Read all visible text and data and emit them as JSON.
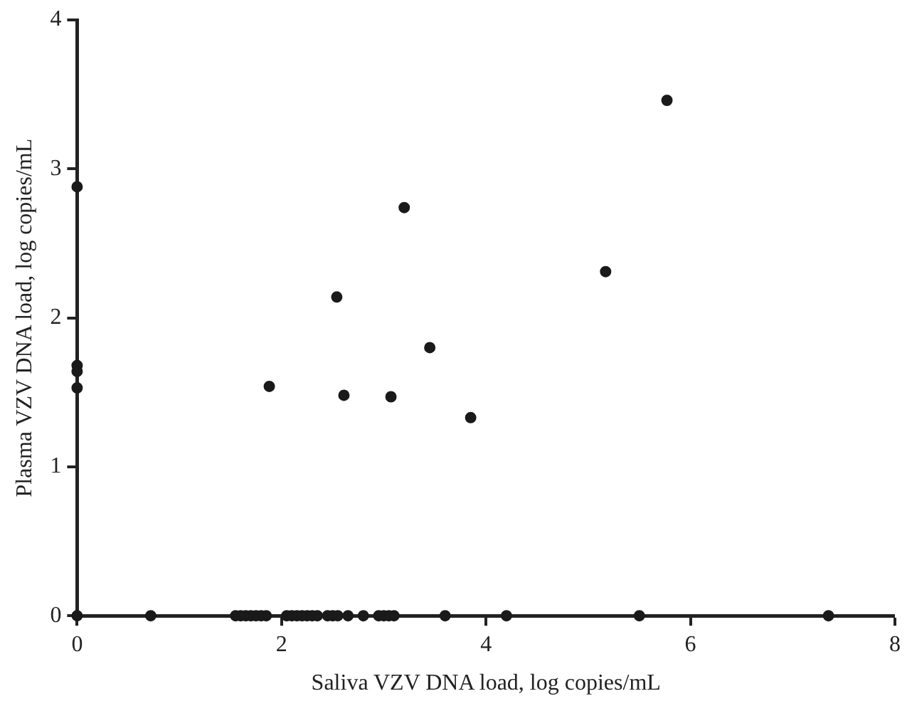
{
  "chart_data": {
    "type": "scatter",
    "xlabel": "Saliva VZV DNA load, log copies/mL",
    "ylabel": "Plasma VZV DNA load, log copies/mL",
    "series": [
      {
        "color": "#1a1a1a",
        "x": [
          0,
          0,
          0,
          0,
          1.88,
          2.54,
          2.61,
          3.07,
          3.2,
          3.45,
          3.85,
          5.17,
          5.77,
          0,
          0.72,
          1.55,
          1.6,
          1.65,
          1.7,
          1.75,
          1.8,
          1.85,
          2.05,
          2.1,
          2.15,
          2.2,
          2.25,
          2.3,
          2.35,
          2.45,
          2.5,
          2.55,
          2.65,
          2.8,
          2.95,
          3.0,
          3.05,
          3.1,
          3.6,
          4.2,
          5.5,
          7.35
        ],
        "values": [
          2.88,
          1.68,
          1.64,
          1.53,
          1.54,
          2.14,
          1.48,
          1.47,
          2.74,
          1.8,
          1.33,
          2.31,
          3.46,
          0,
          0,
          0,
          0,
          0,
          0,
          0,
          0,
          0,
          0,
          0,
          0,
          0,
          0,
          0,
          0,
          0,
          0,
          0,
          0,
          0,
          0,
          0,
          0,
          0,
          0,
          0,
          0,
          0
        ]
      }
    ],
    "xlim": [
      0,
      8
    ],
    "xticks": [
      0,
      2,
      4,
      6,
      8
    ],
    "ylim": [
      0,
      4
    ],
    "yticks": [
      0,
      1,
      2,
      3,
      4
    ],
    "grid": false,
    "legend": false,
    "marker": "circle"
  }
}
